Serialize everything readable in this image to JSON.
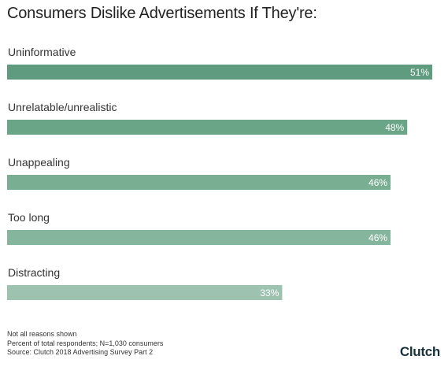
{
  "chart_data": {
    "type": "bar",
    "orientation": "horizontal",
    "title": "Consumers Dislike Advertisements If They're:",
    "categories": [
      "Uninformative",
      "Unrelatable/unrealistic",
      "Unappealing",
      "Too long",
      "Distracting"
    ],
    "values": [
      51,
      48,
      46,
      46,
      33
    ],
    "value_labels": [
      "51%",
      "48%",
      "46%",
      "46%",
      "33%"
    ],
    "colors": [
      "#5f9b7f",
      "#6aa587",
      "#7aae93",
      "#86b59d",
      "#9dc2b0"
    ],
    "xlim": [
      0,
      51
    ],
    "grid": false,
    "legend": "none"
  },
  "footnotes": [
    "Not all reasons shown",
    "Percent of total respondents; N=1,030 consumers",
    "Source: Clutch 2018 Advertising Survey Part 2"
  ],
  "logo_text": "Clutch"
}
